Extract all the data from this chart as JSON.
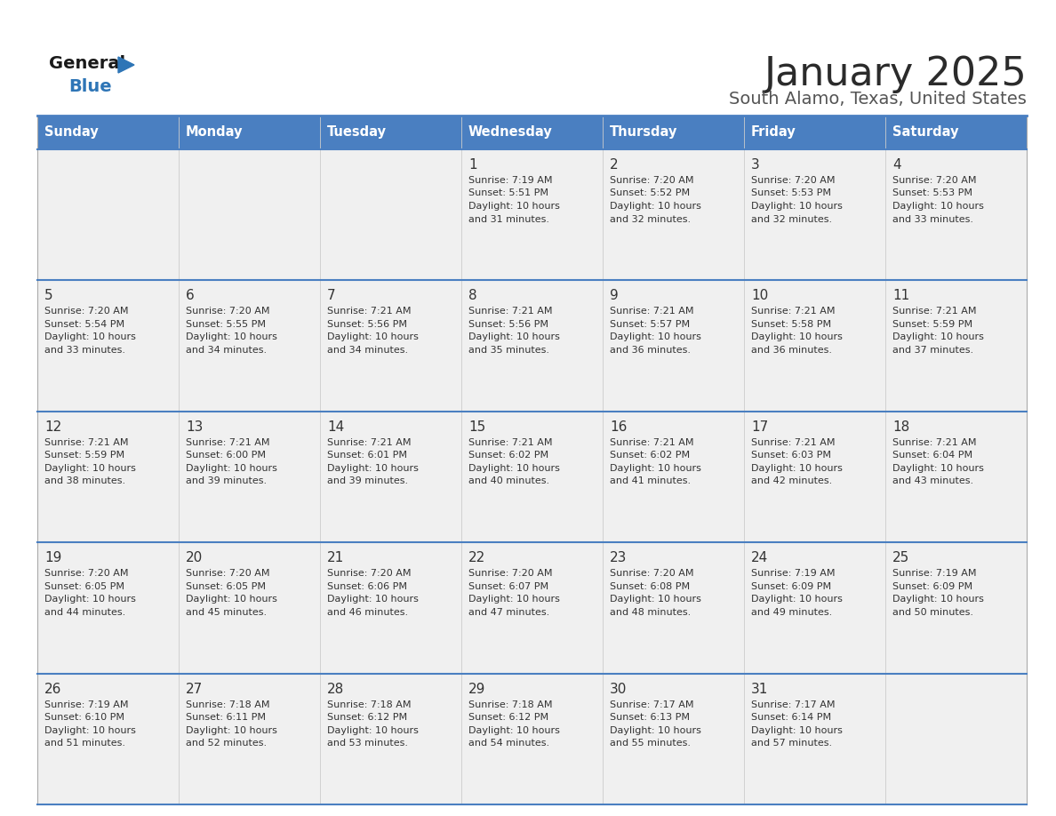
{
  "title": "January 2025",
  "subtitle": "South Alamo, Texas, United States",
  "days_of_week": [
    "Sunday",
    "Monday",
    "Tuesday",
    "Wednesday",
    "Thursday",
    "Friday",
    "Saturday"
  ],
  "header_bg": "#4A7FC1",
  "header_text_color": "#FFFFFF",
  "cell_bg": "#F0F0F0",
  "text_color": "#333333",
  "line_color": "#4A7FC1",
  "title_color": "#2B2B2B",
  "subtitle_color": "#555555",
  "logo_general_color": "#1A1A1A",
  "logo_blue_color": "#2E75B6",
  "calendar_data": [
    {
      "day": 1,
      "col": 3,
      "row": 0,
      "sunrise": "7:19 AM",
      "sunset": "5:51 PM",
      "daylight": "10 hours and 31 minutes."
    },
    {
      "day": 2,
      "col": 4,
      "row": 0,
      "sunrise": "7:20 AM",
      "sunset": "5:52 PM",
      "daylight": "10 hours and 32 minutes."
    },
    {
      "day": 3,
      "col": 5,
      "row": 0,
      "sunrise": "7:20 AM",
      "sunset": "5:53 PM",
      "daylight": "10 hours and 32 minutes."
    },
    {
      "day": 4,
      "col": 6,
      "row": 0,
      "sunrise": "7:20 AM",
      "sunset": "5:53 PM",
      "daylight": "10 hours and 33 minutes."
    },
    {
      "day": 5,
      "col": 0,
      "row": 1,
      "sunrise": "7:20 AM",
      "sunset": "5:54 PM",
      "daylight": "10 hours and 33 minutes."
    },
    {
      "day": 6,
      "col": 1,
      "row": 1,
      "sunrise": "7:20 AM",
      "sunset": "5:55 PM",
      "daylight": "10 hours and 34 minutes."
    },
    {
      "day": 7,
      "col": 2,
      "row": 1,
      "sunrise": "7:21 AM",
      "sunset": "5:56 PM",
      "daylight": "10 hours and 34 minutes."
    },
    {
      "day": 8,
      "col": 3,
      "row": 1,
      "sunrise": "7:21 AM",
      "sunset": "5:56 PM",
      "daylight": "10 hours and 35 minutes."
    },
    {
      "day": 9,
      "col": 4,
      "row": 1,
      "sunrise": "7:21 AM",
      "sunset": "5:57 PM",
      "daylight": "10 hours and 36 minutes."
    },
    {
      "day": 10,
      "col": 5,
      "row": 1,
      "sunrise": "7:21 AM",
      "sunset": "5:58 PM",
      "daylight": "10 hours and 36 minutes."
    },
    {
      "day": 11,
      "col": 6,
      "row": 1,
      "sunrise": "7:21 AM",
      "sunset": "5:59 PM",
      "daylight": "10 hours and 37 minutes."
    },
    {
      "day": 12,
      "col": 0,
      "row": 2,
      "sunrise": "7:21 AM",
      "sunset": "5:59 PM",
      "daylight": "10 hours and 38 minutes."
    },
    {
      "day": 13,
      "col": 1,
      "row": 2,
      "sunrise": "7:21 AM",
      "sunset": "6:00 PM",
      "daylight": "10 hours and 39 minutes."
    },
    {
      "day": 14,
      "col": 2,
      "row": 2,
      "sunrise": "7:21 AM",
      "sunset": "6:01 PM",
      "daylight": "10 hours and 39 minutes."
    },
    {
      "day": 15,
      "col": 3,
      "row": 2,
      "sunrise": "7:21 AM",
      "sunset": "6:02 PM",
      "daylight": "10 hours and 40 minutes."
    },
    {
      "day": 16,
      "col": 4,
      "row": 2,
      "sunrise": "7:21 AM",
      "sunset": "6:02 PM",
      "daylight": "10 hours and 41 minutes."
    },
    {
      "day": 17,
      "col": 5,
      "row": 2,
      "sunrise": "7:21 AM",
      "sunset": "6:03 PM",
      "daylight": "10 hours and 42 minutes."
    },
    {
      "day": 18,
      "col": 6,
      "row": 2,
      "sunrise": "7:21 AM",
      "sunset": "6:04 PM",
      "daylight": "10 hours and 43 minutes."
    },
    {
      "day": 19,
      "col": 0,
      "row": 3,
      "sunrise": "7:20 AM",
      "sunset": "6:05 PM",
      "daylight": "10 hours and 44 minutes."
    },
    {
      "day": 20,
      "col": 1,
      "row": 3,
      "sunrise": "7:20 AM",
      "sunset": "6:05 PM",
      "daylight": "10 hours and 45 minutes."
    },
    {
      "day": 21,
      "col": 2,
      "row": 3,
      "sunrise": "7:20 AM",
      "sunset": "6:06 PM",
      "daylight": "10 hours and 46 minutes."
    },
    {
      "day": 22,
      "col": 3,
      "row": 3,
      "sunrise": "7:20 AM",
      "sunset": "6:07 PM",
      "daylight": "10 hours and 47 minutes."
    },
    {
      "day": 23,
      "col": 4,
      "row": 3,
      "sunrise": "7:20 AM",
      "sunset": "6:08 PM",
      "daylight": "10 hours and 48 minutes."
    },
    {
      "day": 24,
      "col": 5,
      "row": 3,
      "sunrise": "7:19 AM",
      "sunset": "6:09 PM",
      "daylight": "10 hours and 49 minutes."
    },
    {
      "day": 25,
      "col": 6,
      "row": 3,
      "sunrise": "7:19 AM",
      "sunset": "6:09 PM",
      "daylight": "10 hours and 50 minutes."
    },
    {
      "day": 26,
      "col": 0,
      "row": 4,
      "sunrise": "7:19 AM",
      "sunset": "6:10 PM",
      "daylight": "10 hours and 51 minutes."
    },
    {
      "day": 27,
      "col": 1,
      "row": 4,
      "sunrise": "7:18 AM",
      "sunset": "6:11 PM",
      "daylight": "10 hours and 52 minutes."
    },
    {
      "day": 28,
      "col": 2,
      "row": 4,
      "sunrise": "7:18 AM",
      "sunset": "6:12 PM",
      "daylight": "10 hours and 53 minutes."
    },
    {
      "day": 29,
      "col": 3,
      "row": 4,
      "sunrise": "7:18 AM",
      "sunset": "6:12 PM",
      "daylight": "10 hours and 54 minutes."
    },
    {
      "day": 30,
      "col": 4,
      "row": 4,
      "sunrise": "7:17 AM",
      "sunset": "6:13 PM",
      "daylight": "10 hours and 55 minutes."
    },
    {
      "day": 31,
      "col": 5,
      "row": 4,
      "sunrise": "7:17 AM",
      "sunset": "6:14 PM",
      "daylight": "10 hours and 57 minutes."
    }
  ]
}
